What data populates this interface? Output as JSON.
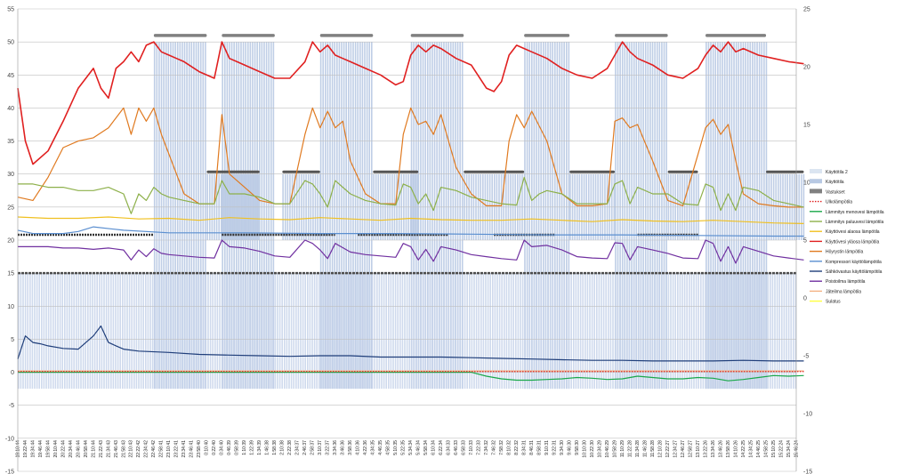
{
  "chart_data": {
    "type": "line",
    "title": "",
    "xlabel": "",
    "ylabel": "",
    "ylim": [
      -15,
      55
    ],
    "y_ticks": [
      -15,
      -10,
      -5,
      0,
      5,
      10,
      15,
      20,
      25,
      30,
      35,
      40,
      45,
      50,
      55
    ],
    "y2lim": [
      -15,
      25
    ],
    "y2_ticks": [
      -15,
      -10,
      -5,
      0,
      5,
      10,
      15,
      20,
      25
    ],
    "grid": true,
    "legend_position": "right",
    "x_tick_labels": [
      "19:10:44",
      "19:22:44",
      "19:34:44",
      "19:46:44",
      "19:58:44",
      "20:10:44",
      "20:22:44",
      "20:34:44",
      "20:46:44",
      "20:58:44",
      "21:10:44",
      "21:22:43",
      "21:34:43",
      "21:46:43",
      "21:58:43",
      "22:10:43",
      "22:22:42",
      "22:34:42",
      "22:46:42",
      "22:58:41",
      "23:10:41",
      "23:22:41",
      "23:34:41",
      "23:46:41",
      "23:58:40",
      "0:10:40",
      "0:22:40",
      "0:34:40",
      "0:46:39",
      "0:58:39",
      "1:10:39",
      "1:22:39",
      "1:34:39",
      "1:46:38",
      "1:58:38",
      "2:10:38",
      "2:22:38",
      "2:34:37",
      "2:46:37",
      "2:58:37",
      "3:10:37",
      "3:22:37",
      "3:34:36",
      "3:46:36",
      "3:58:36",
      "4:10:36",
      "4:22:36",
      "4:34:35",
      "4:46:35",
      "4:58:35",
      "5:10:35",
      "5:22:35",
      "5:34:34",
      "5:46:34",
      "5:58:34",
      "6:10:34",
      "6:22:34",
      "6:34:33",
      "6:46:33",
      "6:58:33",
      "7:10:33",
      "7:22:33",
      "7:34:32",
      "7:46:32",
      "7:58:32",
      "8:10:32",
      "8:22:32",
      "8:34:31",
      "8:46:31",
      "8:58:31",
      "9:10:31",
      "9:22:31",
      "9:34:30",
      "9:46:30",
      "9:58:30",
      "10:10:30",
      "10:22:30",
      "10:34:29",
      "10:46:29",
      "10:58:29",
      "11:10:29",
      "11:22:28",
      "11:34:28",
      "11:46:28",
      "11:58:28",
      "12:10:28",
      "12:22:27",
      "12:34:27",
      "12:46:27",
      "12:58:27",
      "13:10:27",
      "13:22:26",
      "13:34:26",
      "13:46:26",
      "13:58:26",
      "14:10:26",
      "14:22:25",
      "14:34:25",
      "14:46:25",
      "14:58:25",
      "15:10:25",
      "15:22:24",
      "15:34:24",
      "15:46:24"
    ],
    "legend": [
      {
        "name": "Käyttötila 2",
        "color": "#dbe5f1",
        "kind": "bar"
      },
      {
        "name": "Käyttötila",
        "color": "#b8c9e3",
        "kind": "bar"
      },
      {
        "name": "Vastukset",
        "color": "#808080",
        "kind": "bar"
      },
      {
        "name": "Ulkolämpötila",
        "color": "#e02020",
        "kind": "dotted"
      },
      {
        "name": "Lämmitys menovesi lämpötila",
        "color": "#1aa84a",
        "kind": "line"
      },
      {
        "name": "Lämmitys paluuvesi lämpötila",
        "color": "#8db04a",
        "kind": "line"
      },
      {
        "name": "Käyttövesi alaosa lämpötila",
        "color": "#f0c020",
        "kind": "line"
      },
      {
        "name": "Käyttövesi yläosa lämpötila",
        "color": "#e02020",
        "kind": "line"
      },
      {
        "name": "Höyrystin lämpötila",
        "color": "#e07a20",
        "kind": "line"
      },
      {
        "name": "Kompressori käyttölämpötila",
        "color": "#5b8fd0",
        "kind": "line"
      },
      {
        "name": "Sähkövastus käyttölämpötila",
        "color": "#1f3e7a",
        "kind": "line"
      },
      {
        "name": "Poistoilma lämpötila",
        "color": "#7030a0",
        "kind": "line"
      },
      {
        "name": "Jäteilma lämpötila",
        "color": "#f4b183",
        "kind": "line"
      },
      {
        "name": "Sulatus",
        "color": "#ffff40",
        "kind": "line"
      }
    ],
    "compressor_on_periods": [
      [
        18,
        25
      ],
      [
        27,
        34
      ],
      [
        40,
        47
      ],
      [
        52,
        59
      ],
      [
        67,
        73
      ],
      [
        79,
        86
      ],
      [
        91,
        99
      ]
    ],
    "dhw_on_periods": [
      [
        25,
        32
      ],
      [
        35,
        40
      ],
      [
        47,
        53
      ],
      [
        59,
        67
      ],
      [
        73,
        79
      ],
      [
        86,
        90
      ],
      [
        99,
        104
      ]
    ],
    "series": [
      {
        "name": "Käyttövesi yläosa lämpötila",
        "color": "#e02020",
        "x": [
          0,
          1,
          2,
          4,
          6,
          8,
          10,
          11,
          12,
          13,
          14,
          15,
          16,
          17,
          18,
          19,
          20,
          21,
          22,
          24,
          26,
          27,
          28,
          29,
          30,
          32,
          34,
          36,
          38,
          39,
          40,
          41,
          42,
          43,
          44,
          46,
          48,
          50,
          51,
          52,
          53,
          54,
          55,
          56,
          58,
          60,
          62,
          63,
          64,
          65,
          66,
          67,
          68,
          70,
          72,
          74,
          76,
          78,
          79,
          80,
          81,
          82,
          84,
          86,
          88,
          90,
          91,
          92,
          93,
          94,
          95,
          96,
          98,
          100,
          102,
          104
        ],
        "values": [
          43,
          35,
          31.5,
          33.5,
          38,
          43,
          46,
          43,
          41.5,
          46,
          47,
          48.5,
          47,
          49.5,
          50,
          48.5,
          48,
          47.5,
          47,
          45.5,
          44.5,
          50,
          47.5,
          47,
          46.5,
          45.5,
          44.5,
          44.5,
          47,
          50,
          48.5,
          49.5,
          48,
          47.5,
          47,
          46,
          45,
          43.5,
          44,
          48,
          49.5,
          48.5,
          49.5,
          49,
          47.5,
          46.5,
          43,
          42.5,
          44,
          48,
          49.5,
          49,
          48.5,
          47.5,
          46,
          45,
          44.5,
          46,
          48,
          50,
          48.5,
          47.5,
          46.5,
          45,
          44.5,
          46,
          48,
          49.5,
          48.5,
          50,
          48.5,
          49,
          48,
          47.5,
          47,
          46.7
        ]
      },
      {
        "name": "Höyrystin lämpötila",
        "color": "#e07a20",
        "x": [
          0,
          2,
          4,
          6,
          8,
          10,
          12,
          14,
          15,
          16,
          17,
          18,
          19,
          20,
          21,
          22,
          24,
          26,
          27,
          28,
          30,
          32,
          34,
          36,
          38,
          39,
          40,
          41,
          42,
          43,
          44,
          46,
          48,
          50,
          51,
          52,
          53,
          54,
          55,
          56,
          58,
          60,
          62,
          64,
          65,
          66,
          67,
          68,
          70,
          72,
          74,
          76,
          78,
          79,
          80,
          81,
          82,
          84,
          86,
          88,
          90,
          91,
          92,
          93,
          94,
          95,
          96,
          98,
          100,
          102,
          104
        ],
        "values": [
          26.5,
          26,
          29.5,
          34,
          35,
          35.5,
          37,
          40,
          36,
          40,
          38,
          40,
          36,
          33,
          30,
          27,
          25.5,
          25.5,
          39,
          30,
          28,
          26,
          25.5,
          25.5,
          36,
          40,
          37,
          39.5,
          37,
          38,
          32,
          27,
          25.5,
          25.5,
          36,
          40,
          37.5,
          38,
          36,
          39,
          31,
          27,
          25.2,
          25.2,
          35,
          39,
          37,
          39.5,
          35,
          27,
          25.2,
          25.2,
          25.5,
          38,
          38.5,
          37,
          37.5,
          32,
          26,
          25.2,
          33,
          37,
          38.3,
          36,
          37.5,
          32,
          27,
          25.5,
          25.2,
          25,
          25
        ]
      },
      {
        "name": "Lämmitys paluuvesi lämpötila",
        "color": "#8db04a",
        "x": [
          0,
          2,
          4,
          6,
          8,
          10,
          12,
          14,
          15,
          16,
          17,
          18,
          19,
          20,
          22,
          24,
          26,
          27,
          28,
          30,
          32,
          34,
          36,
          38,
          39,
          40,
          41,
          42,
          44,
          46,
          48,
          50,
          51,
          52,
          53,
          54,
          55,
          56,
          58,
          60,
          62,
          64,
          66,
          67,
          68,
          69,
          70,
          72,
          74,
          76,
          78,
          79,
          80,
          81,
          82,
          84,
          86,
          88,
          90,
          91,
          92,
          93,
          94,
          95,
          96,
          98,
          100,
          102,
          104
        ],
        "values": [
          28.5,
          28.5,
          28,
          28,
          27.5,
          27.5,
          28,
          27,
          24,
          27,
          26,
          28,
          27,
          26.5,
          26,
          25.5,
          25.5,
          29,
          27,
          27,
          26.5,
          25.5,
          25.5,
          29,
          28.5,
          27,
          25,
          29,
          27,
          26,
          25.5,
          25.3,
          28.5,
          28,
          25.5,
          27,
          24.5,
          28,
          27.5,
          26.5,
          26,
          25.5,
          25.3,
          29.5,
          26,
          27,
          27.5,
          27,
          25.5,
          25.5,
          25.5,
          28.5,
          29,
          25.5,
          28,
          27,
          27,
          25.5,
          25.3,
          28.5,
          28,
          24.5,
          27,
          24.5,
          28,
          27.5,
          26,
          25.5,
          25
        ]
      },
      {
        "name": "Käyttövesi alaosa lämpötila",
        "color": "#f0c020",
        "x": [
          0,
          4,
          8,
          12,
          16,
          20,
          24,
          28,
          32,
          36,
          40,
          44,
          48,
          52,
          56,
          60,
          64,
          68,
          72,
          76,
          80,
          84,
          88,
          92,
          96,
          100,
          104
        ],
        "values": [
          23.5,
          23.3,
          23.3,
          23.5,
          23.2,
          23.3,
          23,
          23.4,
          23.2,
          23.1,
          23.4,
          23.2,
          23,
          23.3,
          23.1,
          23,
          23,
          23.2,
          23,
          22.8,
          23.1,
          22.9,
          22.8,
          23,
          22.8,
          22.6,
          22.5
        ]
      },
      {
        "name": "Kompressori käyttölämpötila",
        "color": "#5b8fd0",
        "x": [
          0,
          2,
          6,
          8,
          10,
          14,
          20,
          30,
          40,
          50,
          60,
          70,
          80,
          90,
          100,
          104
        ],
        "values": [
          21.5,
          21,
          21,
          21.3,
          22,
          21.5,
          21.1,
          21.1,
          21,
          21,
          20.9,
          20.8,
          20.8,
          20.7,
          20.6,
          20.6
        ]
      },
      {
        "name": "Poistoilma lämpötila",
        "color": "#7030a0",
        "x": [
          0,
          2,
          4,
          6,
          8,
          10,
          12,
          14,
          15,
          16,
          17,
          18,
          19,
          20,
          22,
          24,
          26,
          27,
          28,
          30,
          32,
          34,
          36,
          38,
          39,
          40,
          41,
          42,
          44,
          46,
          48,
          50,
          51,
          52,
          53,
          54,
          55,
          56,
          58,
          60,
          62,
          64,
          66,
          67,
          68,
          70,
          72,
          74,
          76,
          78,
          79,
          80,
          81,
          82,
          84,
          86,
          88,
          90,
          91,
          92,
          93,
          94,
          95,
          96,
          98,
          100,
          102,
          104
        ],
        "values": [
          19,
          19,
          19,
          18.8,
          18.8,
          18.6,
          18.8,
          18.5,
          17,
          18.5,
          17.5,
          18.7,
          18,
          17.8,
          17.6,
          17.4,
          17.3,
          20,
          19,
          18.8,
          18.3,
          17.6,
          17.4,
          20,
          19.5,
          18.5,
          17.2,
          19.5,
          18.2,
          17.8,
          17.6,
          17.4,
          19.5,
          19,
          17,
          18.6,
          16.8,
          19,
          18.5,
          17.8,
          17.5,
          17.2,
          17,
          20,
          19,
          19.2,
          18.5,
          17.5,
          17.3,
          17.2,
          19.6,
          19.5,
          17,
          19,
          18.5,
          18,
          17.3,
          17.2,
          20,
          19.5,
          16.8,
          19,
          16.5,
          19,
          18.3,
          17.6,
          17.3,
          17
        ]
      },
      {
        "name": "Sähkövastus käyttölämpötila",
        "color": "#1f3e7a",
        "x": [
          0,
          1,
          2,
          3,
          4,
          6,
          8,
          10,
          11,
          12,
          13,
          14,
          16,
          20,
          24,
          28,
          32,
          36,
          40,
          44,
          48,
          52,
          56,
          60,
          64,
          68,
          72,
          76,
          80,
          84,
          88,
          92,
          96,
          100,
          104
        ],
        "values": [
          2,
          5.5,
          4.5,
          4.3,
          4,
          3.6,
          3.5,
          5.5,
          7,
          4.5,
          4,
          3.5,
          3.2,
          3,
          2.7,
          2.6,
          2.5,
          2.4,
          2.5,
          2.5,
          2.3,
          2.3,
          2.3,
          2.2,
          2.1,
          2,
          1.9,
          1.8,
          1.8,
          1.7,
          1.7,
          1.7,
          1.8,
          1.7,
          1.7
        ]
      },
      {
        "name": "Jäteilma lämpötila",
        "color": "#f4b183",
        "x": [
          0,
          104
        ],
        "values": [
          0.2,
          0.2
        ]
      },
      {
        "name": "Lämmitys menovesi lämpötila",
        "color": "#1aa84a",
        "x": [
          0,
          20,
          30,
          50,
          60,
          62,
          64,
          66,
          68,
          70,
          72,
          74,
          76,
          78,
          80,
          82,
          84,
          86,
          88,
          90,
          92,
          94,
          96,
          98,
          100,
          102,
          104
        ],
        "values": [
          0,
          0,
          0,
          0,
          0,
          -0.6,
          -1,
          -1.2,
          -1.2,
          -1.1,
          -1,
          -0.8,
          -0.9,
          -1.1,
          -1,
          -0.6,
          -0.8,
          -1,
          -1,
          -0.8,
          -0.9,
          -1.3,
          -1.1,
          -0.8,
          -0.5,
          -0.6,
          -0.5
        ]
      },
      {
        "name": "Ulkolämpötila",
        "color": "#e02020",
        "dotted": true,
        "x": [
          0,
          104
        ],
        "values": [
          0.1,
          0.1
        ]
      }
    ]
  }
}
